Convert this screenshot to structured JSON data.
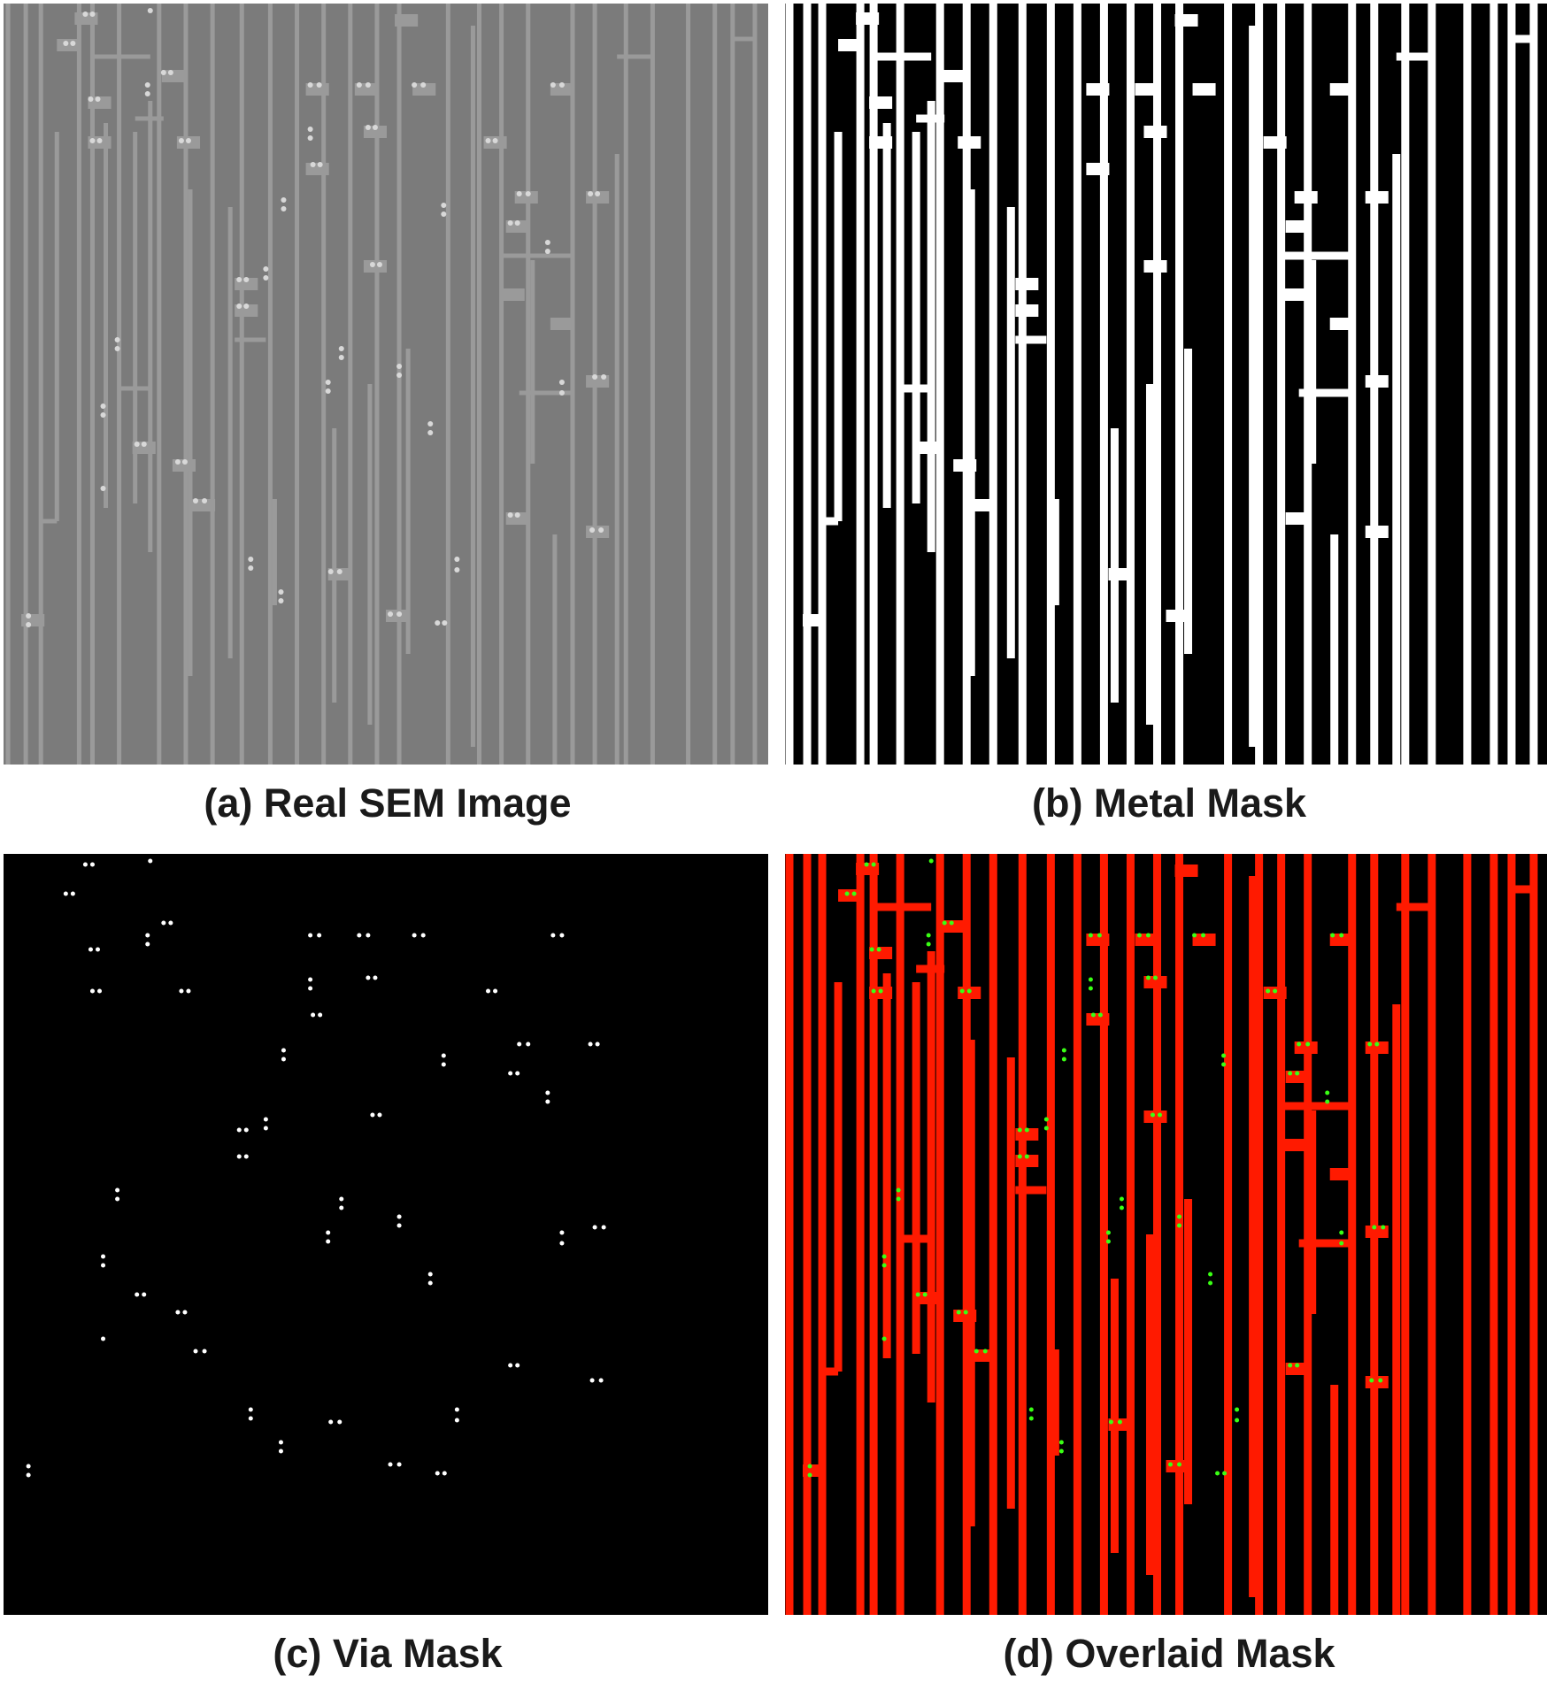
{
  "figure": {
    "panels": [
      {
        "id": "a",
        "caption": "(a) Real SEM Image"
      },
      {
        "id": "b",
        "caption": "(b) Metal Mask"
      },
      {
        "id": "c",
        "caption": "(c) Via Mask"
      },
      {
        "id": "d",
        "caption": "(d) Overlaid Mask"
      }
    ]
  },
  "colors": {
    "sem_background": "#7b7b7b",
    "sem_wire": "#9a9a9a",
    "sem_via": "#d8d8d8",
    "mask_background": "#000000",
    "metal": "#ffffff",
    "via": "#ffffff",
    "overlay_metal": "#ff1a00",
    "overlay_via": "#39ff14"
  }
}
